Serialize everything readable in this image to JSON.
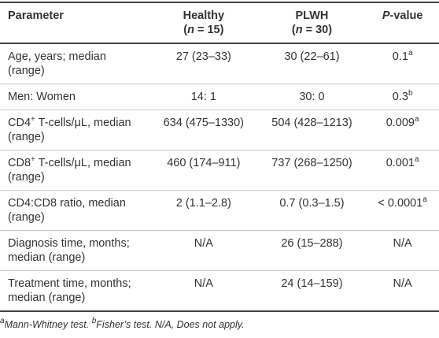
{
  "table": {
    "columns": [
      [
        [
          "Parameter"
        ]
      ],
      [
        [
          "Healthy"
        ],
        [
          "(",
          {
            "text": "n",
            "fmt": "i"
          },
          " = 15)"
        ]
      ],
      [
        [
          "PLWH"
        ],
        [
          "(",
          {
            "text": "n",
            "fmt": "i"
          },
          " = 30)"
        ]
      ],
      [
        [
          {
            "text": "P",
            "fmt": "i"
          },
          "-value"
        ]
      ]
    ],
    "rows": [
      [
        [
          "Age, years; median (range)"
        ],
        [
          "27 (23–33)"
        ],
        [
          "30 (22–61)"
        ],
        [
          "0.1",
          {
            "text": "a",
            "fmt": "sup"
          }
        ]
      ],
      [
        [
          "Men: Women"
        ],
        [
          "14: 1"
        ],
        [
          "30: 0"
        ],
        [
          "0.3",
          {
            "text": "b",
            "fmt": "sup"
          }
        ]
      ],
      [
        [
          "CD4",
          {
            "text": "+",
            "fmt": "sup"
          },
          " T-cells/μL, median (range)"
        ],
        [
          "634 (475–1330)"
        ],
        [
          "504 (428–1213)"
        ],
        [
          "0.009",
          {
            "text": "a",
            "fmt": "sup"
          }
        ]
      ],
      [
        [
          "CD8",
          {
            "text": "+",
            "fmt": "sup"
          },
          " T-cells/μL, median (range)"
        ],
        [
          "460 (174–911)"
        ],
        [
          "737 (268–1250)"
        ],
        [
          "0.001",
          {
            "text": "a",
            "fmt": "sup"
          }
        ]
      ],
      [
        [
          "CD4:CD8 ratio, median (range)"
        ],
        [
          "2 (1.1–2.8)"
        ],
        [
          "0.7 (0.3–1.5)"
        ],
        [
          "< 0.0001",
          {
            "text": "a",
            "fmt": "sup"
          }
        ]
      ],
      [
        [
          "Diagnosis time, months; median (range)"
        ],
        [
          "N/A"
        ],
        [
          "26 (15–288)"
        ],
        [
          "N/A"
        ]
      ],
      [
        [
          "Treatment time, months; median (range)"
        ],
        [
          "N/A"
        ],
        [
          "24 (14–159)"
        ],
        [
          "N/A"
        ]
      ]
    ]
  },
  "footnote": [
    {
      "text": "a",
      "fmt": "sup"
    },
    {
      "text": "Mann-Whitney test. ",
      "fmt": "i"
    },
    {
      "text": "b",
      "fmt": "sup"
    },
    {
      "text": "Fisher’s test. N/A, Does not apply.",
      "fmt": "i"
    }
  ]
}
